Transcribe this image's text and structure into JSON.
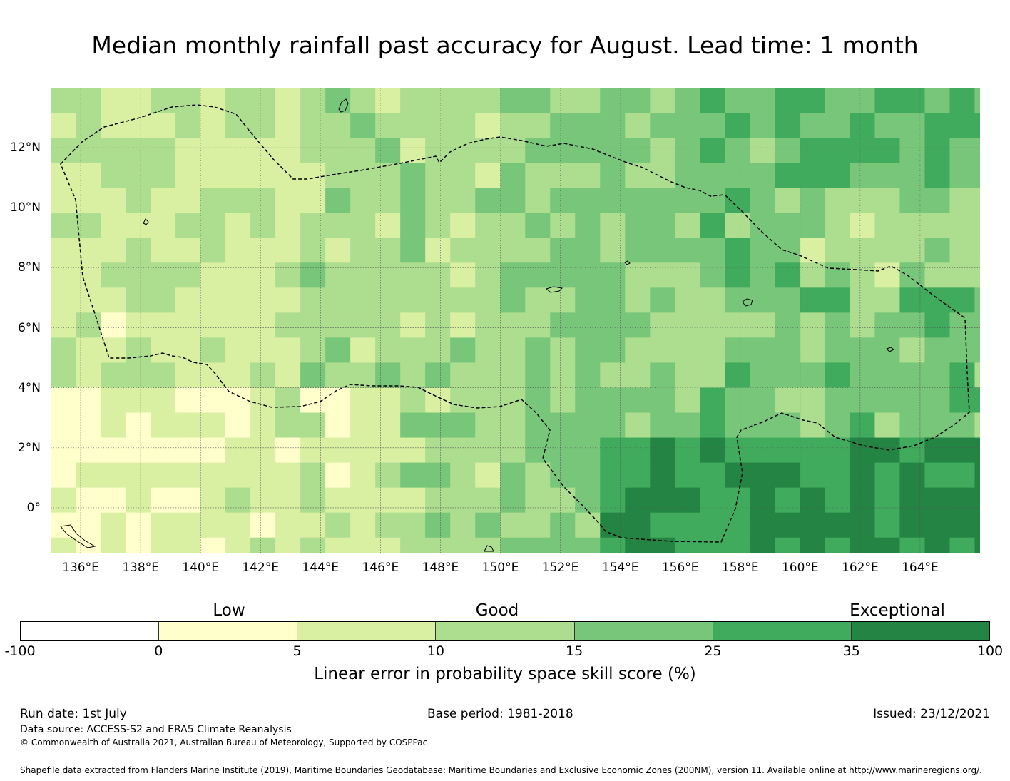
{
  "title": "Median monthly rainfall past accuracy for August. Lead time: 1 month",
  "map": {
    "lon_min": 135,
    "lon_max": 166,
    "lat_min": -1.5,
    "lat_max": 14,
    "lon_ticks": [
      "136°E",
      "138°E",
      "140°E",
      "142°E",
      "144°E",
      "146°E",
      "148°E",
      "150°E",
      "152°E",
      "154°E",
      "156°E",
      "158°E",
      "160°E",
      "162°E",
      "164°E"
    ],
    "lat_ticks": [
      "12°N",
      "10°N",
      "8°N",
      "6°N",
      "4°N",
      "2°N",
      "0°"
    ],
    "grid_cells": "grid of skill score classes over the region",
    "eez_boundary": "dashed",
    "colors": [
      "#ffffff",
      "#ffffcc",
      "#d9f0a3",
      "#addd8e",
      "#78c679",
      "#41ab5d",
      "#238443"
    ]
  },
  "legend": {
    "categories": [
      "Low",
      "Good",
      "Exceptional"
    ],
    "ticks": [
      "-100",
      "0",
      "5",
      "10",
      "15",
      "25",
      "35",
      "100"
    ],
    "label": "Linear error in probability space skill score (%)"
  },
  "footer": {
    "run_date": "Run date: 1st July",
    "base_period": "Base period: 1981-2018",
    "issued": "Issued: 23/12/2021",
    "data_source": "Data source: ACCESS-S2 and ERA5 Climate Reanalysis",
    "copyright": "© Commonwealth of Australia 2021, Australian Bureau of Meteorology, Supported by COSPPac",
    "shapefile": "Shapefile data extracted from Flanders Marine Institute (2019), Maritime Boundaries Geodatabase: Maritime Boundaries and Exclusive Economic Zones (200NM), version 11. Available online at http://www.marineregions.org/."
  }
}
